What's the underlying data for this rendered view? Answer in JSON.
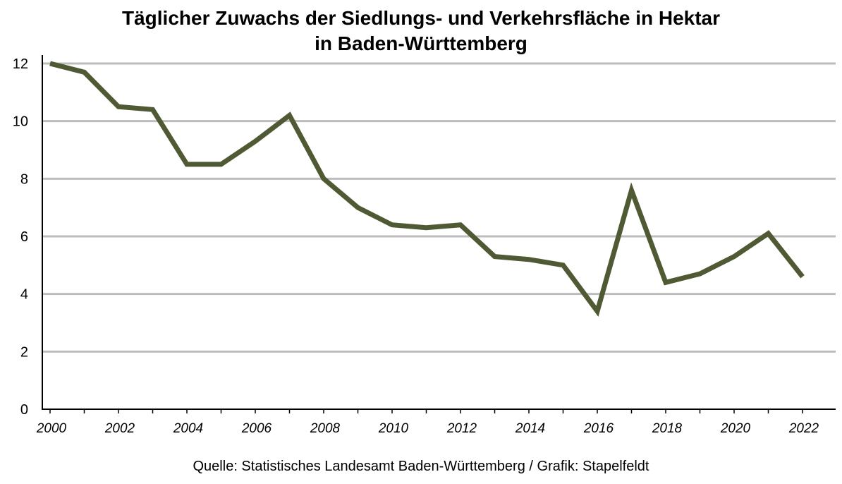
{
  "chart_data": {
    "type": "line",
    "title_line1": "Täglicher Zuwachs der Siedlungs- und Verkehrsfläche in Hektar",
    "title_line2": "in Baden-Württemberg",
    "xlabel": "",
    "ylabel": "",
    "ylim": [
      0,
      12
    ],
    "yticks": [
      "0",
      "2",
      "4",
      "6",
      "8",
      "10",
      "12"
    ],
    "xlim": [
      2000,
      2022
    ],
    "xticks": [
      "2000",
      "2002",
      "2004",
      "2006",
      "2008",
      "2010",
      "2012",
      "2014",
      "2016",
      "2018",
      "2020",
      "2022"
    ],
    "grid": true,
    "series": [
      {
        "name": "Täglicher Zuwachs",
        "color": "#4f5a35",
        "x": [
          2000,
          2001,
          2002,
          2003,
          2004,
          2005,
          2006,
          2007,
          2008,
          2009,
          2010,
          2011,
          2012,
          2013,
          2014,
          2015,
          2016,
          2017,
          2018,
          2019,
          2020,
          2021,
          2022
        ],
        "values": [
          12.0,
          11.7,
          10.5,
          10.4,
          8.5,
          8.5,
          9.3,
          10.2,
          8.0,
          7.0,
          6.4,
          6.3,
          6.4,
          5.3,
          5.2,
          5.0,
          3.4,
          7.6,
          4.4,
          4.7,
          5.3,
          6.1,
          4.6
        ]
      }
    ],
    "source": "Quelle: Statistisches Landesamt Baden-Württemberg  / Grafik: Stapelfeldt"
  }
}
